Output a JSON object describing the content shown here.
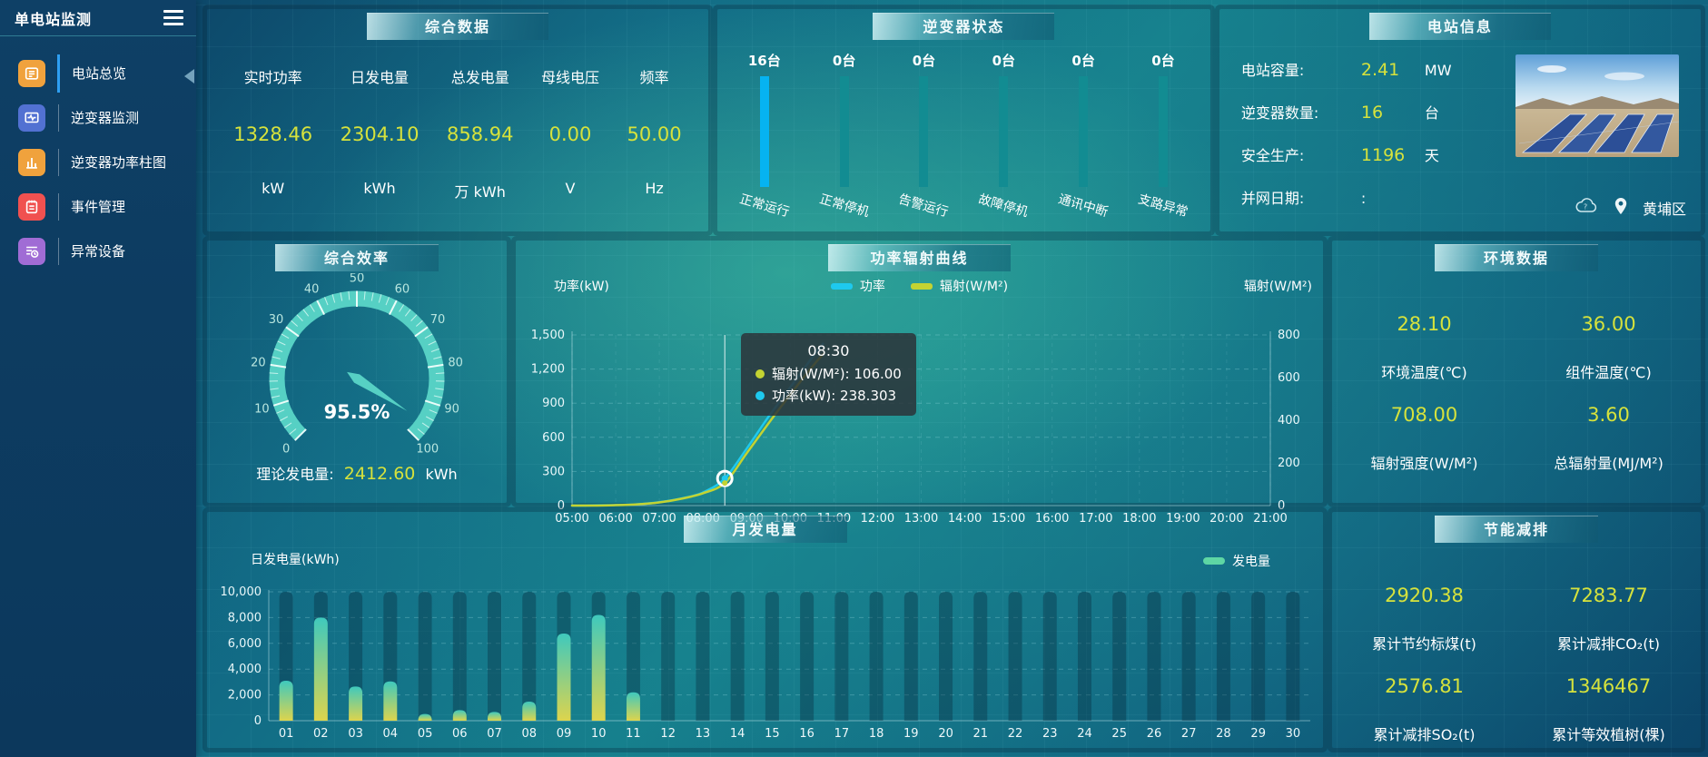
{
  "colors": {
    "accent_value": "#d6e23c",
    "power_line": "#1ec9ee",
    "radiation_line": "#c3d332",
    "inverter_highlight": "#06b3f1",
    "inverter_normal": "#128c92",
    "gauge_band": "#56d0c4"
  },
  "sidebar": {
    "title": "单电站监测",
    "items": [
      {
        "label": "电站总览",
        "active": true
      },
      {
        "label": "逆变器监测",
        "active": false
      },
      {
        "label": "逆变器功率柱图",
        "active": false
      },
      {
        "label": "事件管理",
        "active": false
      },
      {
        "label": "异常设备",
        "active": false
      }
    ]
  },
  "summary": {
    "title": "综合数据",
    "stats": [
      {
        "label": "实时功率",
        "value": "1328.46",
        "unit": "kW"
      },
      {
        "label": "日发电量",
        "value": "2304.10",
        "unit": "kWh"
      },
      {
        "label": "总发电量",
        "value": "858.94",
        "unit": "万 kWh"
      },
      {
        "label": "母线电压",
        "value": "0.00",
        "unit": "V"
      },
      {
        "label": "频率",
        "value": "50.00",
        "unit": "Hz"
      }
    ]
  },
  "inverter_status": {
    "title": "逆变器状态",
    "items": [
      {
        "count": "16台",
        "label": "正常运行",
        "color": "#06b3f1"
      },
      {
        "count": "0台",
        "label": "正常停机",
        "color": "#128c92"
      },
      {
        "count": "0台",
        "label": "告警运行",
        "color": "#128c92"
      },
      {
        "count": "0台",
        "label": "故障停机",
        "color": "#128c92"
      },
      {
        "count": "0台",
        "label": "通讯中断",
        "color": "#128c92"
      },
      {
        "count": "0台",
        "label": "支路异常",
        "color": "#128c92"
      }
    ]
  },
  "plant_info": {
    "title": "电站信息",
    "rows": [
      {
        "label": "电站容量:",
        "value": "2.41",
        "unit": "MW"
      },
      {
        "label": "逆变器数量:",
        "value": "16",
        "unit": "台"
      },
      {
        "label": "安全生产:",
        "value": "1196",
        "unit": "天"
      },
      {
        "label": "并网日期:",
        "value": ":",
        "unit": ""
      }
    ],
    "weather_mark": "?",
    "location": "黄埔区"
  },
  "environment": {
    "title": "环境数据",
    "stats": [
      {
        "value": "28.10",
        "label": "环境温度(℃)"
      },
      {
        "value": "36.00",
        "label": "组件温度(℃)"
      },
      {
        "value": "708.00",
        "label": "辐射强度(W/M²)"
      },
      {
        "value": "3.60",
        "label": "总辐射量(MJ/M²)"
      }
    ]
  },
  "saving": {
    "title": "节能减排",
    "stats": [
      {
        "value": "2920.38",
        "label": "累计节约标煤(t)"
      },
      {
        "value": "7283.77",
        "label": "累计减排CO₂(t)"
      },
      {
        "value": "2576.81",
        "label": "累计减排SO₂(t)"
      },
      {
        "value": "1346467",
        "label": "累计等效植树(棵)"
      }
    ]
  },
  "chart_data": [
    {
      "type": "gauge",
      "title": "综合效率",
      "min": 0,
      "max": 100,
      "value": 95.5,
      "display": "95.5%",
      "band_color": "#56d0c4",
      "label_color": "#b9e6df",
      "footer": {
        "label": "理论发电量:",
        "value": "2412.60",
        "unit": "kWh"
      }
    },
    {
      "type": "line",
      "title": "功率辐射曲线",
      "x_labels": [
        "05:00",
        "06:00",
        "07:00",
        "08:00",
        "09:00",
        "10:00",
        "11:00",
        "12:00",
        "13:00",
        "14:00",
        "15:00",
        "16:00",
        "17:00",
        "18:00",
        "19:00",
        "20:00",
        "21:00"
      ],
      "left_axis": {
        "label": "功率(kW)",
        "max": 1500,
        "step": 300
      },
      "right_axis": {
        "label": "辐射(W/M²)",
        "max": 800,
        "step": 200
      },
      "series": [
        {
          "name": "功率",
          "color": "#1ec9ee",
          "axis": "left",
          "points": [
            [
              5,
              0
            ],
            [
              5.5,
              2
            ],
            [
              6,
              5
            ],
            [
              6.5,
              12
            ],
            [
              7,
              30
            ],
            [
              7.5,
              62
            ],
            [
              8,
              115
            ],
            [
              8.5,
              238.303
            ],
            [
              9,
              500
            ],
            [
              9.5,
              780
            ],
            [
              10,
              1040
            ],
            [
              10.5,
              1300
            ],
            [
              10.75,
              1423
            ]
          ]
        },
        {
          "name": "辐射(W/M²)",
          "color": "#c3d332",
          "axis": "right",
          "points": [
            [
              5,
              0
            ],
            [
              5.5,
              0
            ],
            [
              6,
              2
            ],
            [
              6.5,
              6
            ],
            [
              7,
              15
            ],
            [
              7.5,
              32
            ],
            [
              8,
              58
            ],
            [
              8.5,
              106
            ],
            [
              9,
              245
            ],
            [
              9.5,
              385
            ],
            [
              10,
              520
            ],
            [
              10.5,
              650
            ],
            [
              10.75,
              710
            ]
          ]
        }
      ],
      "crosshair_time": 8.5,
      "marker_power": 238.303,
      "marker_radiation": 106,
      "tooltip": {
        "time": "08:30",
        "rows": [
          {
            "text": "辐射(W/M²): 106.00",
            "color": "#c3d332"
          },
          {
            "text": "功率(kW): 238.303",
            "color": "#1ec9ee"
          }
        ]
      }
    },
    {
      "type": "bar",
      "title": "月发电量",
      "ylabel": "日发电量(kWh)",
      "legend": {
        "label": "发电量",
        "color": "#5ed6a4"
      },
      "categories": [
        "01",
        "02",
        "03",
        "04",
        "05",
        "06",
        "07",
        "08",
        "09",
        "10",
        "11",
        "12",
        "13",
        "14",
        "15",
        "16",
        "17",
        "18",
        "19",
        "20",
        "21",
        "22",
        "23",
        "24",
        "25",
        "26",
        "27",
        "28",
        "29",
        "30"
      ],
      "values": [
        3100,
        8000,
        2650,
        3050,
        520,
        820,
        680,
        1480,
        6760,
        8200,
        2200,
        0,
        0,
        0,
        0,
        0,
        0,
        0,
        0,
        0,
        0,
        0,
        0,
        0,
        0,
        0,
        0,
        0,
        0,
        0
      ],
      "y_max": 10000,
      "y_step": 2000,
      "bar_top_color": "#3fc9bd",
      "bar_bottom_color": "#ddd44d",
      "shadow_color": "rgba(9,44,62,0.38)"
    }
  ]
}
